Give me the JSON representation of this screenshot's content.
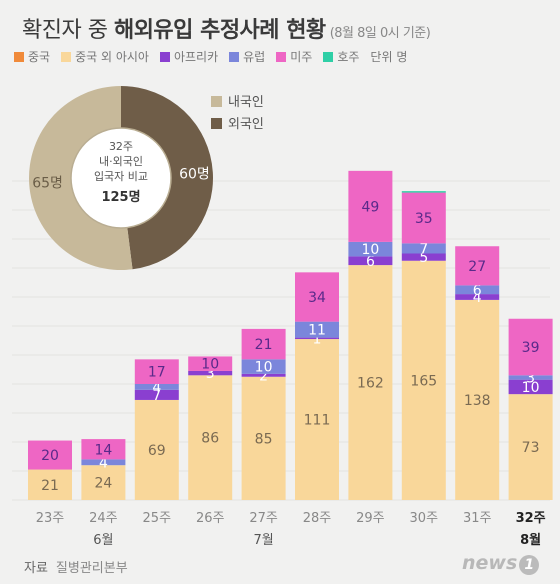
{
  "title": {
    "part1": "확진자 중 ",
    "part2": "해외유입 추정사례 현황",
    "note": "(8월 8일 0시 기준)"
  },
  "legend": {
    "unit": "단위 명"
  },
  "colors": {
    "china": "#f08a3a",
    "asia": "#f9d79a",
    "africa": "#8a3fd0",
    "europe": "#7b86db",
    "americas": "#ee66c4",
    "oceania": "#2fcfa6",
    "domestic": "#c7b99a",
    "foreign": "#6f5d48"
  },
  "chart_data": [
    {
      "type": "bar",
      "stacked": true,
      "categories": [
        "23주",
        "24주",
        "25주",
        "26주",
        "27주",
        "28주",
        "29주",
        "30주",
        "31주",
        "32주"
      ],
      "month_labels": [
        {
          "category": "24주",
          "text": "6월"
        },
        {
          "category": "27주",
          "text": "7월"
        },
        {
          "category": "32주",
          "text": "8월"
        }
      ],
      "series": [
        {
          "name": "중국",
          "color_key": "china",
          "values": [
            0,
            0,
            0,
            0,
            0,
            0,
            0,
            0,
            0,
            0
          ]
        },
        {
          "name": "중국 외 아시아",
          "color_key": "asia",
          "values": [
            21,
            24,
            69,
            86,
            85,
            111,
            162,
            165,
            138,
            73
          ]
        },
        {
          "name": "아프리카",
          "color_key": "africa",
          "values": [
            0,
            0,
            7,
            3,
            2,
            1,
            6,
            5,
            4,
            10
          ]
        },
        {
          "name": "유럽",
          "color_key": "europe",
          "values": [
            0,
            4,
            4,
            0,
            10,
            11,
            10,
            7,
            6,
            3
          ]
        },
        {
          "name": "미주",
          "color_key": "americas",
          "values": [
            20,
            14,
            17,
            10,
            21,
            34,
            49,
            35,
            27,
            39
          ]
        },
        {
          "name": "호주",
          "color_key": "oceania",
          "values": [
            0,
            0,
            0,
            0,
            0,
            0,
            0,
            1,
            0,
            0
          ]
        }
      ],
      "ylim": [
        0,
        220
      ],
      "grid": true,
      "legend_position": "top"
    },
    {
      "type": "pie",
      "center_text": [
        "32주",
        "내·외국인",
        "입국자 비교"
      ],
      "center_total": "125명",
      "slices": [
        {
          "name": "내국인",
          "value": 65,
          "label": "65명",
          "color_key": "domestic"
        },
        {
          "name": "외국인",
          "value": 60,
          "label": "60명",
          "color_key": "foreign"
        }
      ],
      "legend_position": "right"
    }
  ],
  "source": {
    "label": "자료",
    "value": "질병관리본부"
  },
  "logo": {
    "text": "news",
    "mark": "1"
  }
}
